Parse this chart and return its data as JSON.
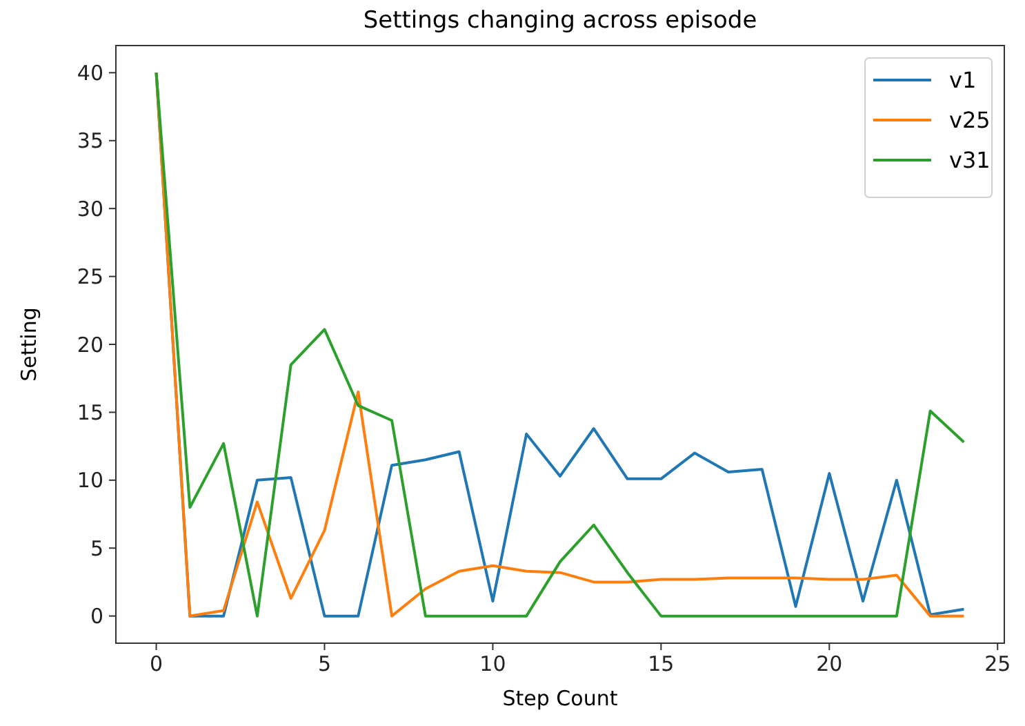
{
  "chart_data": {
    "type": "line",
    "title": "Settings changing across episode",
    "xlabel": "Step Count",
    "ylabel": "Setting",
    "x": [
      0,
      1,
      2,
      3,
      4,
      5,
      6,
      7,
      8,
      9,
      10,
      11,
      12,
      13,
      14,
      15,
      16,
      17,
      18,
      19,
      20,
      21,
      22,
      23,
      24
    ],
    "series": [
      {
        "name": "v1",
        "color": "#1f77b4",
        "values": [
          40,
          0,
          0,
          10,
          10.2,
          0,
          0,
          11.1,
          11.5,
          12.1,
          1.1,
          13.4,
          10.3,
          13.8,
          10.1,
          10.1,
          12,
          10.6,
          10.8,
          0.7,
          10.5,
          1.1,
          10,
          0.1,
          0.5
        ]
      },
      {
        "name": "v25",
        "color": "#ff7f0e",
        "values": [
          40,
          0,
          0.4,
          8.4,
          1.3,
          6.3,
          16.5,
          0,
          2,
          3.3,
          3.7,
          3.3,
          3.2,
          2.5,
          2.5,
          2.7,
          2.7,
          2.8,
          2.8,
          2.8,
          2.7,
          2.7,
          3,
          0,
          0
        ]
      },
      {
        "name": "v31",
        "color": "#2ca02c",
        "values": [
          40,
          8,
          12.7,
          0,
          18.5,
          21.1,
          15.5,
          14.4,
          0,
          0,
          0,
          0,
          4,
          6.7,
          3.2,
          0,
          0,
          0,
          0,
          0,
          0,
          0,
          0,
          15.1,
          12.8
        ]
      }
    ],
    "xlim": [
      -1.2,
      25.2
    ],
    "xticks": [
      0,
      5,
      10,
      15,
      20,
      25
    ],
    "ylim": [
      -2,
      42
    ],
    "yticks": [
      0,
      5,
      10,
      15,
      20,
      25,
      30,
      35,
      40
    ],
    "grid": false,
    "legend": "top right"
  }
}
